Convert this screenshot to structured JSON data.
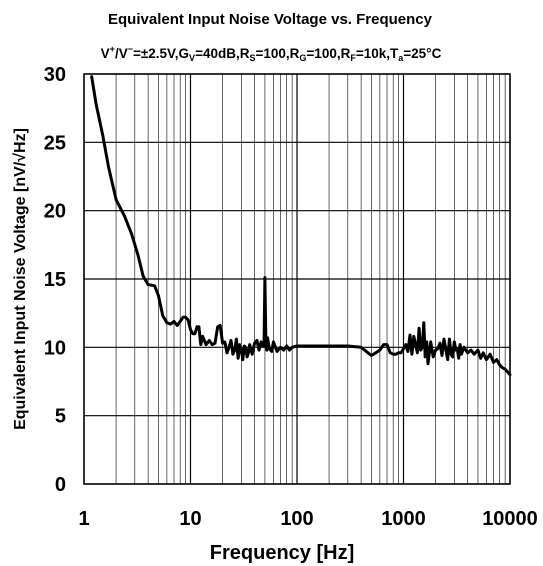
{
  "chart_data": {
    "type": "line",
    "title": "Equivalent Input Noise Voltage vs. Frequency",
    "subtitle": {
      "a": "V",
      "a_sup": "+",
      "b": "/V",
      "b_sup": "−",
      "c": "=±2.5V,G",
      "c_sub": "V",
      "d": "=40dB,R",
      "d_sub": "S",
      "e": "=100,R",
      "e_sub": "G",
      "f": "=100,R",
      "f_sub": "F",
      "g": "=10k,T",
      "g_sub": "a",
      "h": "=25°C"
    },
    "xlabel": "Frequency [Hz]",
    "ylabel": "Equivalent Input Noise Voltage [nV/√Hz]",
    "xscale": "log",
    "xlim": [
      1,
      10000
    ],
    "ylim": [
      0,
      30
    ],
    "xticks": [
      "1",
      "10",
      "100",
      "1000",
      "10000"
    ],
    "yticks": [
      "0",
      "5",
      "10",
      "15",
      "20",
      "25",
      "30"
    ],
    "grid": true,
    "series": [
      {
        "color": "#000000",
        "x": [
          1.18,
          1.3,
          1.5,
          1.7,
          2.0,
          2.4,
          2.8,
          3.2,
          3.6,
          4.0,
          4.6,
          5.0,
          5.5,
          6.0,
          6.5,
          7.0,
          7.5,
          8.0,
          8.5,
          9.0,
          9.5,
          10.0,
          10.5,
          11.0,
          11.5,
          12.0,
          12.5,
          13.0,
          14.0,
          15.0,
          16.0,
          17.0,
          18.0,
          19.0,
          20.0,
          21.0,
          22.0,
          23.0,
          24.0,
          25.0,
          26.0,
          27.0,
          28.0,
          29.0,
          30.0,
          31.0,
          32.0,
          33.0,
          34.0,
          35.0,
          36.0,
          38.0,
          40.0,
          42.0,
          44.0,
          46.0,
          48.0,
          49.0,
          50.0,
          51.0,
          52.0,
          53.0,
          55.0,
          58.0,
          60.0,
          65.0,
          70.0,
          75.0,
          80.0,
          85.0,
          90.0,
          100.0,
          150.0,
          200.0,
          300.0,
          400.0,
          500.0,
          550.0,
          600.0,
          650.0,
          700.0,
          750.0,
          800.0,
          850.0,
          900.0,
          950.0,
          1000.0,
          1050.0,
          1100.0,
          1150.0,
          1200.0,
          1250.0,
          1300.0,
          1350.0,
          1400.0,
          1450.0,
          1500.0,
          1550.0,
          1600.0,
          1650.0,
          1700.0,
          1800.0,
          1900.0,
          2000.0,
          2100.0,
          2200.0,
          2300.0,
          2400.0,
          2500.0,
          2600.0,
          2700.0,
          2800.0,
          2900.0,
          3000.0,
          3100.0,
          3200.0,
          3300.0,
          3400.0,
          3500.0,
          3700.0,
          4000.0,
          4300.0,
          4600.0,
          5000.0,
          5300.0,
          5600.0,
          6000.0,
          6500.0,
          7000.0,
          7500.0,
          8000.0,
          8500.0,
          9000.0,
          9500.0,
          10000.0
        ],
        "y": [
          29.8,
          27.8,
          25.5,
          23.2,
          20.8,
          19.6,
          18.3,
          16.8,
          15.2,
          14.6,
          14.5,
          13.8,
          12.3,
          11.8,
          11.7,
          11.9,
          11.6,
          11.9,
          12.2,
          12.2,
          12.0,
          11.3,
          11.0,
          11.0,
          11.5,
          11.5,
          10.2,
          10.8,
          10.2,
          10.5,
          10.2,
          10.3,
          11.5,
          11.6,
          10.3,
          10.4,
          9.6,
          10.0,
          10.5,
          9.5,
          9.8,
          10.6,
          9.2,
          10.2,
          9.8,
          9.1,
          10.1,
          10.0,
          9.3,
          9.6,
          10.2,
          9.5,
          10.3,
          10.5,
          9.8,
          10.4,
          10.1,
          10.1,
          15.1,
          10.3,
          9.8,
          10.7,
          9.9,
          9.7,
          10.4,
          9.7,
          10.0,
          9.8,
          10.1,
          9.8,
          10.0,
          10.1,
          10.1,
          10.1,
          10.1,
          10.0,
          9.4,
          9.6,
          9.8,
          10.2,
          10.2,
          9.6,
          9.5,
          9.5,
          9.6,
          9.6,
          9.9,
          10.2,
          9.7,
          10.9,
          9.5,
          10.8,
          10.2,
          9.6,
          11.4,
          9.8,
          10.0,
          11.8,
          9.3,
          10.4,
          8.8,
          10.4,
          9.3,
          9.8,
          9.9,
          10.3,
          9.4,
          10.6,
          9.8,
          9.1,
          10.6,
          9.5,
          9.3,
          10.4,
          9.8,
          9.9,
          9.2,
          10.2,
          9.5,
          10.0,
          9.6,
          9.8,
          9.5,
          9.8,
          9.2,
          9.6,
          9.1,
          9.5,
          8.9,
          9.1,
          8.7,
          8.5,
          8.4,
          8.2,
          8.0
        ]
      }
    ]
  }
}
